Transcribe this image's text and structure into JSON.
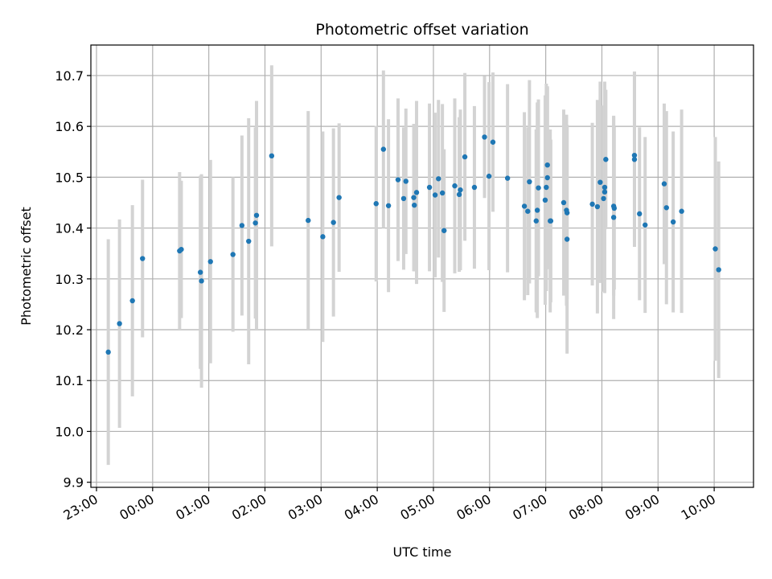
{
  "chart_data": {
    "type": "scatter",
    "title": "Photometric offset variation",
    "xlabel": "UTC time",
    "ylabel": "Photometric offset",
    "x_unit": "hours relative to 00:00 UTC",
    "xlim": [
      -1.1,
      10.7
    ],
    "ylim": [
      9.89,
      10.76
    ],
    "xticks": [
      -1,
      0,
      1,
      2,
      3,
      4,
      5,
      6,
      7,
      8,
      9,
      10
    ],
    "xtick_labels": [
      "23:00",
      "00:00",
      "01:00",
      "02:00",
      "03:00",
      "04:00",
      "05:00",
      "06:00",
      "07:00",
      "08:00",
      "09:00",
      "10:00"
    ],
    "yticks": [
      9.9,
      10.0,
      10.1,
      10.2,
      10.3,
      10.4,
      10.5,
      10.6,
      10.7
    ],
    "ytick_labels": [
      "9.9",
      "10.0",
      "10.1",
      "10.2",
      "10.3",
      "10.4",
      "10.5",
      "10.6",
      "10.7"
    ],
    "grid": true,
    "point_color": "#1f77b4",
    "errorbar_color": "#d3d3d3",
    "series": [
      {
        "points": [
          [
            -0.79,
            10.156,
            0.222
          ],
          [
            -0.59,
            10.212,
            0.205
          ],
          [
            -0.36,
            10.257,
            0.188
          ],
          [
            -0.18,
            10.34,
            0.155
          ],
          [
            0.48,
            10.355,
            0.155
          ],
          [
            0.51,
            10.358,
            0.135
          ],
          [
            0.85,
            10.313,
            0.19
          ],
          [
            0.87,
            10.296,
            0.21
          ],
          [
            1.03,
            10.334,
            0.2
          ],
          [
            1.43,
            10.348,
            0.152
          ],
          [
            1.59,
            10.405,
            0.177
          ],
          [
            1.71,
            10.374,
            0.242
          ],
          [
            1.83,
            10.41,
            0.188
          ],
          [
            1.85,
            10.425,
            0.225
          ],
          [
            2.12,
            10.542,
            0.178
          ],
          [
            2.77,
            10.415,
            0.215
          ],
          [
            3.03,
            10.383,
            0.207
          ],
          [
            3.22,
            10.411,
            0.185
          ],
          [
            3.32,
            10.46,
            0.146
          ],
          [
            3.98,
            10.448,
            0.153
          ],
          [
            4.11,
            10.555,
            0.155
          ],
          [
            4.2,
            10.444,
            0.17
          ],
          [
            4.37,
            10.495,
            0.16
          ],
          [
            4.47,
            10.458,
            0.14
          ],
          [
            4.51,
            10.492,
            0.143
          ],
          [
            4.65,
            10.46,
            0.145
          ],
          [
            4.66,
            10.445,
            0.13
          ],
          [
            4.7,
            10.47,
            0.18
          ],
          [
            4.93,
            10.48,
            0.165
          ],
          [
            5.03,
            10.465,
            0.162
          ],
          [
            5.09,
            10.497,
            0.155
          ],
          [
            5.16,
            10.469,
            0.175
          ],
          [
            5.19,
            10.395,
            0.16
          ],
          [
            5.38,
            10.483,
            0.172
          ],
          [
            5.46,
            10.466,
            0.152
          ],
          [
            5.48,
            10.475,
            0.158
          ],
          [
            5.56,
            10.54,
            0.165
          ],
          [
            5.73,
            10.48,
            0.16
          ],
          [
            5.91,
            10.579,
            0.12
          ],
          [
            5.99,
            10.502,
            0.185
          ],
          [
            6.06,
            10.569,
            0.137
          ],
          [
            6.32,
            10.498,
            0.185
          ],
          [
            6.62,
            10.443,
            0.185
          ],
          [
            6.68,
            10.433,
            0.165
          ],
          [
            6.71,
            10.491,
            0.2
          ],
          [
            6.83,
            10.414,
            0.18
          ],
          [
            6.85,
            10.435,
            0.212
          ],
          [
            6.87,
            10.479,
            0.174
          ],
          [
            6.99,
            10.455,
            0.206
          ],
          [
            7.01,
            10.48,
            0.204
          ],
          [
            7.03,
            10.524,
            0.153
          ],
          [
            7.03,
            10.499,
            0.18
          ],
          [
            7.08,
            10.414,
            0.18
          ],
          [
            7.09,
            10.414,
            0.16
          ],
          [
            7.32,
            10.45,
            0.183
          ],
          [
            7.37,
            10.435,
            0.188
          ],
          [
            7.38,
            10.43,
            0.17
          ],
          [
            7.38,
            10.378,
            0.225
          ],
          [
            7.83,
            10.447,
            0.16
          ],
          [
            7.92,
            10.442,
            0.21
          ],
          [
            7.97,
            10.49,
            0.198
          ],
          [
            8.03,
            10.458,
            0.183
          ],
          [
            8.05,
            10.48,
            0.208
          ],
          [
            8.05,
            10.471,
            0.175
          ],
          [
            8.07,
            10.535,
            0.137
          ],
          [
            8.21,
            10.421,
            0.2
          ],
          [
            8.21,
            10.443,
            0.176
          ],
          [
            8.22,
            10.439,
            0.16
          ],
          [
            8.58,
            10.535,
            0.172
          ],
          [
            8.58,
            10.543,
            0.165
          ],
          [
            8.67,
            10.428,
            0.17
          ],
          [
            8.77,
            10.406,
            0.173
          ],
          [
            9.11,
            10.487,
            0.158
          ],
          [
            9.15,
            10.44,
            0.19
          ],
          [
            9.27,
            10.412,
            0.178
          ],
          [
            9.42,
            10.433,
            0.2
          ],
          [
            10.02,
            10.359,
            0.22
          ],
          [
            10.08,
            10.318,
            0.213
          ]
        ]
      }
    ]
  }
}
